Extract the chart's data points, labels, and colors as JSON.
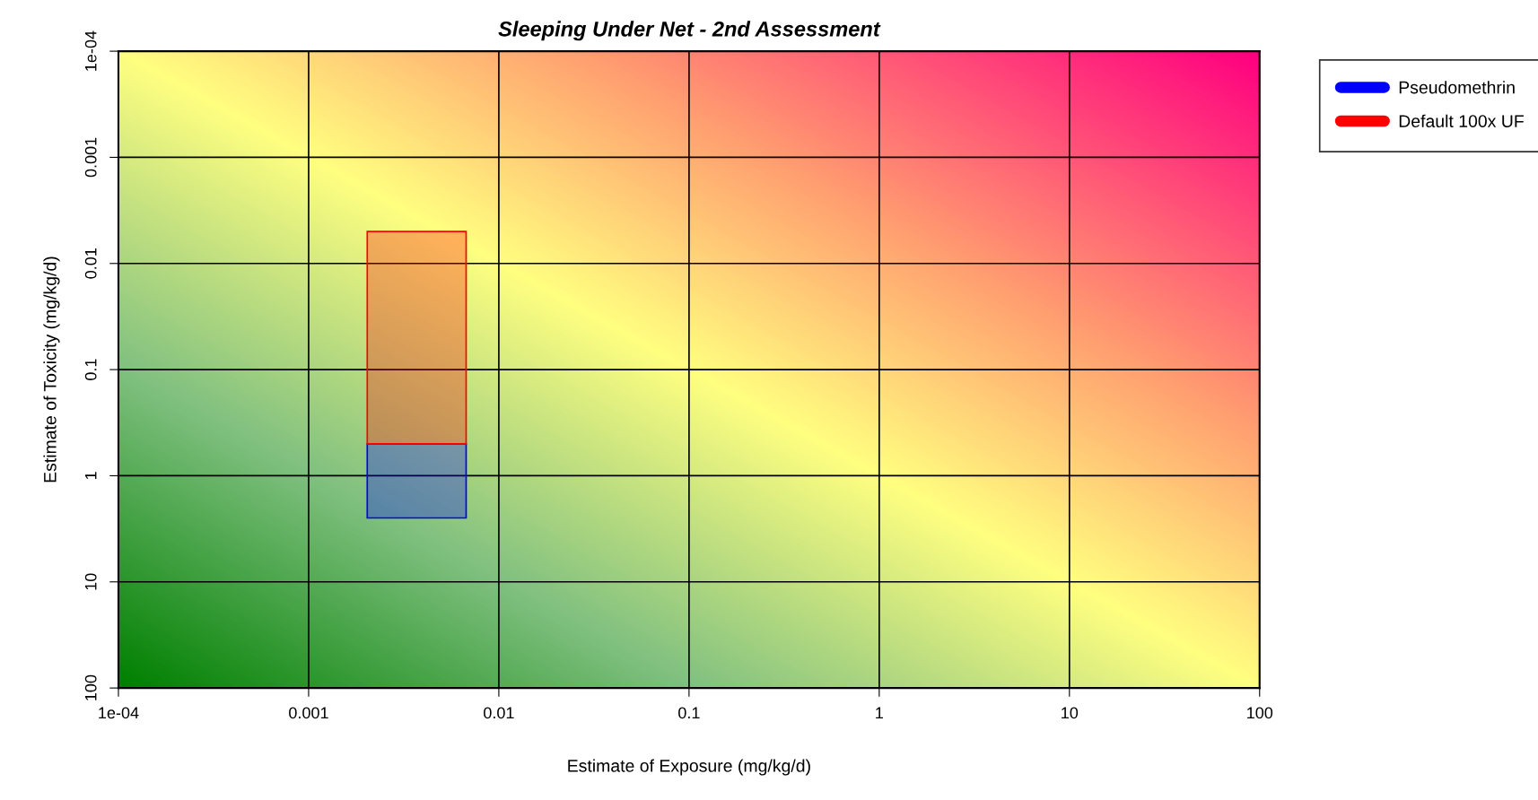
{
  "chart_data": {
    "type": "bar",
    "title": "Sleeping Under Net - 2nd Assessment",
    "xlabel": "Estimate of Exposure (mg/kg/d)",
    "ylabel": "Estimate of Toxicity (mg/kg/d)",
    "x": [
      0.0037
    ],
    "log": "xy",
    "series": [
      {
        "name": "Pseudomethrin",
        "color": "#0000ff",
        "base": [
          0.5
        ],
        "values": [
          2.0
        ]
      },
      {
        "name": "Default 100x UF",
        "color": "#ff0000",
        "base": [
          0.005
        ],
        "values": [
          0.495
        ]
      }
    ],
    "xlim": [
      0.0001,
      100
    ],
    "ylim": [
      100,
      0.0001
    ],
    "xticks": [
      {
        "value": 0.0001,
        "label": "1e-04"
      },
      0.001,
      0.01,
      0.1,
      1,
      10,
      100
    ],
    "yticks": [
      {
        "value": 0.0001,
        "label": "1e-04"
      },
      0.001,
      0.01,
      0.1,
      1,
      10,
      100
    ],
    "grid": true,
    "legend": "top right"
  }
}
